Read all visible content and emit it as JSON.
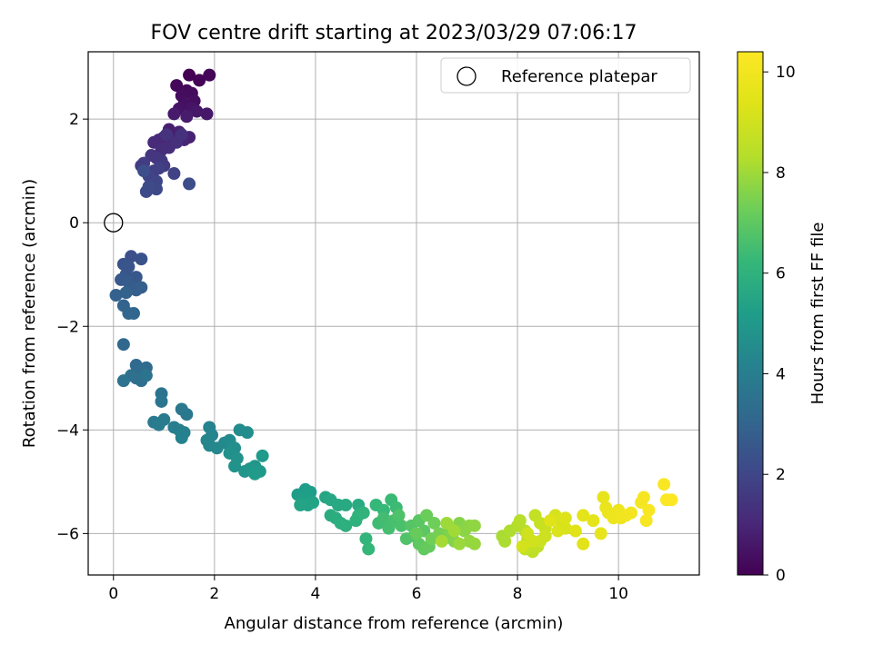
{
  "chart_data": {
    "type": "scatter",
    "title": "FOV centre drift starting at 2023/03/29 07:06:17",
    "xlabel": "Angular distance from reference (arcmin)",
    "ylabel": "Rotation from reference (arcmin)",
    "xlim": [
      -0.5,
      11.6
    ],
    "ylim": [
      -6.8,
      3.3
    ],
    "xticks": [
      0,
      2,
      4,
      6,
      8,
      10
    ],
    "yticks": [
      -6,
      -4,
      -2,
      0,
      2
    ],
    "xtick_labels": [
      "0",
      "2",
      "4",
      "6",
      "8",
      "10"
    ],
    "ytick_labels": [
      "−6",
      "−4",
      "−2",
      "0",
      "2"
    ],
    "grid": true,
    "legend": {
      "position": "top-right",
      "entries": [
        "Reference platepar"
      ]
    },
    "reference_point": {
      "x": 0,
      "y": 0
    },
    "colorbar": {
      "label": "Hours from first FF file",
      "range": [
        0,
        10.4
      ],
      "ticks": [
        0,
        2,
        4,
        6,
        8,
        10
      ],
      "tick_labels": [
        "0",
        "2",
        "4",
        "6",
        "8",
        "10"
      ],
      "colormap": "viridis"
    },
    "series": [
      {
        "points": [
          [
            1.5,
            2.85
          ],
          [
            1.7,
            2.75
          ],
          [
            1.9,
            2.85
          ],
          [
            1.25,
            2.65
          ],
          [
            1.45,
            2.55
          ],
          [
            1.55,
            2.5
          ],
          [
            1.35,
            2.45
          ],
          [
            1.6,
            2.35
          ],
          [
            1.4,
            2.3
          ],
          [
            1.3,
            2.2
          ],
          [
            1.55,
            2.2
          ],
          [
            1.65,
            2.15
          ],
          [
            1.85,
            2.1
          ],
          [
            1.2,
            2.1
          ],
          [
            1.45,
            2.05
          ],
          [
            1.1,
            1.8
          ],
          [
            1.3,
            1.75
          ],
          [
            1.5,
            1.65
          ],
          [
            1.4,
            1.6
          ],
          [
            1.2,
            1.6
          ],
          [
            1.0,
            1.65
          ],
          [
            0.9,
            1.6
          ],
          [
            0.8,
            1.55
          ],
          [
            1.1,
            1.45
          ],
          [
            0.95,
            1.4
          ],
          [
            1.25,
            1.55
          ],
          [
            1.35,
            1.7
          ],
          [
            1.05,
            1.7
          ],
          [
            0.75,
            1.3
          ],
          [
            0.85,
            1.25
          ],
          [
            0.95,
            1.2
          ],
          [
            1.0,
            1.1
          ],
          [
            0.55,
            1.1
          ],
          [
            0.6,
            1.15
          ],
          [
            0.8,
            1.0
          ],
          [
            0.9,
            1.05
          ],
          [
            1.2,
            0.95
          ],
          [
            0.7,
            0.9
          ],
          [
            0.85,
            0.8
          ],
          [
            0.75,
            0.7
          ],
          [
            0.85,
            0.65
          ],
          [
            0.65,
            0.6
          ],
          [
            0.7,
            0.7
          ],
          [
            1.5,
            0.75
          ],
          [
            0.6,
            1.0
          ],
          [
            0.35,
            -0.65
          ],
          [
            0.55,
            -0.7
          ],
          [
            0.2,
            -0.8
          ],
          [
            0.3,
            -0.85
          ],
          [
            0.25,
            -1.0
          ],
          [
            0.45,
            -1.05
          ],
          [
            0.15,
            -1.1
          ],
          [
            0.3,
            -1.15
          ],
          [
            0.35,
            -1.25
          ],
          [
            0.45,
            -1.3
          ],
          [
            0.55,
            -1.25
          ],
          [
            0.05,
            -1.4
          ],
          [
            0.25,
            -1.35
          ],
          [
            0.2,
            -1.6
          ],
          [
            0.3,
            -1.75
          ],
          [
            0.4,
            -1.75
          ],
          [
            0.2,
            -2.35
          ],
          [
            0.45,
            -2.75
          ],
          [
            0.65,
            -2.8
          ],
          [
            0.55,
            -2.85
          ],
          [
            0.45,
            -3.0
          ],
          [
            0.55,
            -3.05
          ],
          [
            0.35,
            -2.95
          ],
          [
            0.2,
            -3.05
          ],
          [
            0.65,
            -2.95
          ],
          [
            0.95,
            -3.3
          ],
          [
            0.95,
            -3.45
          ],
          [
            1.35,
            -3.6
          ],
          [
            1.45,
            -3.7
          ],
          [
            0.8,
            -3.85
          ],
          [
            1.0,
            -3.8
          ],
          [
            0.9,
            -3.9
          ],
          [
            1.2,
            -3.95
          ],
          [
            1.3,
            -4.0
          ],
          [
            1.4,
            -4.05
          ],
          [
            1.35,
            -4.15
          ],
          [
            1.9,
            -3.95
          ],
          [
            1.95,
            -4.1
          ],
          [
            1.85,
            -4.2
          ],
          [
            1.9,
            -4.3
          ],
          [
            2.05,
            -4.35
          ],
          [
            2.2,
            -4.25
          ],
          [
            2.3,
            -4.2
          ],
          [
            2.5,
            -4.0
          ],
          [
            2.65,
            -4.05
          ],
          [
            2.4,
            -4.35
          ],
          [
            2.3,
            -4.45
          ],
          [
            2.45,
            -4.55
          ],
          [
            2.4,
            -4.7
          ],
          [
            2.6,
            -4.8
          ],
          [
            2.7,
            -4.75
          ],
          [
            2.8,
            -4.7
          ],
          [
            2.9,
            -4.8
          ],
          [
            2.95,
            -4.5
          ],
          [
            2.8,
            -4.85
          ],
          [
            3.65,
            -5.25
          ],
          [
            3.8,
            -5.15
          ],
          [
            3.9,
            -5.2
          ],
          [
            3.75,
            -5.35
          ],
          [
            3.85,
            -5.45
          ],
          [
            3.95,
            -5.4
          ],
          [
            3.7,
            -5.45
          ],
          [
            4.2,
            -5.3
          ],
          [
            4.3,
            -5.35
          ],
          [
            4.45,
            -5.45
          ],
          [
            4.6,
            -5.45
          ],
          [
            4.85,
            -5.45
          ],
          [
            4.3,
            -5.65
          ],
          [
            4.4,
            -5.7
          ],
          [
            4.5,
            -5.8
          ],
          [
            4.6,
            -5.85
          ],
          [
            4.8,
            -5.75
          ],
          [
            4.85,
            -5.65
          ],
          [
            4.95,
            -5.6
          ],
          [
            5.0,
            -6.1
          ],
          [
            5.05,
            -6.3
          ],
          [
            5.2,
            -5.45
          ],
          [
            5.35,
            -5.55
          ],
          [
            5.5,
            -5.35
          ],
          [
            5.6,
            -5.5
          ],
          [
            5.25,
            -5.8
          ],
          [
            5.35,
            -5.7
          ],
          [
            5.45,
            -5.9
          ],
          [
            5.55,
            -5.75
          ],
          [
            5.7,
            -5.85
          ],
          [
            5.65,
            -5.65
          ],
          [
            5.8,
            -6.1
          ],
          [
            5.95,
            -6.05
          ],
          [
            5.9,
            -5.85
          ],
          [
            6.05,
            -5.75
          ],
          [
            6.15,
            -5.95
          ],
          [
            6.05,
            -6.2
          ],
          [
            6.15,
            -6.3
          ],
          [
            6.25,
            -6.25
          ],
          [
            6.0,
            -6.0
          ],
          [
            6.2,
            -5.65
          ],
          [
            6.35,
            -5.8
          ],
          [
            6.3,
            -6.1
          ],
          [
            6.45,
            -6.0
          ],
          [
            6.55,
            -6.1
          ],
          [
            6.65,
            -5.95
          ],
          [
            6.7,
            -6.05
          ],
          [
            6.75,
            -6.15
          ],
          [
            6.85,
            -5.8
          ],
          [
            6.95,
            -5.95
          ],
          [
            7.05,
            -5.85
          ],
          [
            7.15,
            -5.85
          ],
          [
            7.05,
            -6.15
          ],
          [
            7.15,
            -6.2
          ],
          [
            6.85,
            -6.2
          ],
          [
            6.6,
            -5.8
          ],
          [
            6.75,
            -5.95
          ],
          [
            6.5,
            -6.15
          ],
          [
            7.7,
            -6.05
          ],
          [
            7.75,
            -6.15
          ],
          [
            7.85,
            -5.95
          ],
          [
            8.0,
            -5.85
          ],
          [
            8.05,
            -5.75
          ],
          [
            8.15,
            -5.95
          ],
          [
            8.2,
            -6.1
          ],
          [
            8.25,
            -6.2
          ],
          [
            8.3,
            -6.35
          ],
          [
            8.4,
            -6.25
          ],
          [
            8.15,
            -6.3
          ],
          [
            8.35,
            -5.65
          ],
          [
            8.45,
            -5.8
          ],
          [
            8.55,
            -5.9
          ],
          [
            8.45,
            -6.15
          ],
          [
            8.55,
            -6.05
          ],
          [
            8.2,
            -6.0
          ],
          [
            8.3,
            -6.15
          ],
          [
            8.1,
            -6.25
          ],
          [
            8.75,
            -5.65
          ],
          [
            8.85,
            -5.75
          ],
          [
            8.95,
            -5.9
          ],
          [
            8.8,
            -5.95
          ],
          [
            8.95,
            -5.7
          ],
          [
            8.65,
            -5.75
          ],
          [
            9.15,
            -5.95
          ],
          [
            9.3,
            -6.2
          ],
          [
            9.3,
            -5.65
          ],
          [
            9.5,
            -5.75
          ],
          [
            9.65,
            -6.0
          ],
          [
            9.7,
            -5.3
          ],
          [
            9.75,
            -5.5
          ],
          [
            9.8,
            -5.6
          ],
          [
            9.9,
            -5.7
          ],
          [
            10.0,
            -5.55
          ],
          [
            10.05,
            -5.7
          ],
          [
            10.15,
            -5.65
          ],
          [
            10.25,
            -5.6
          ],
          [
            10.45,
            -5.4
          ],
          [
            10.5,
            -5.3
          ],
          [
            10.55,
            -5.75
          ],
          [
            10.6,
            -5.55
          ],
          [
            10.9,
            -5.05
          ],
          [
            10.95,
            -5.35
          ],
          [
            11.05,
            -5.35
          ]
        ]
      }
    ]
  }
}
